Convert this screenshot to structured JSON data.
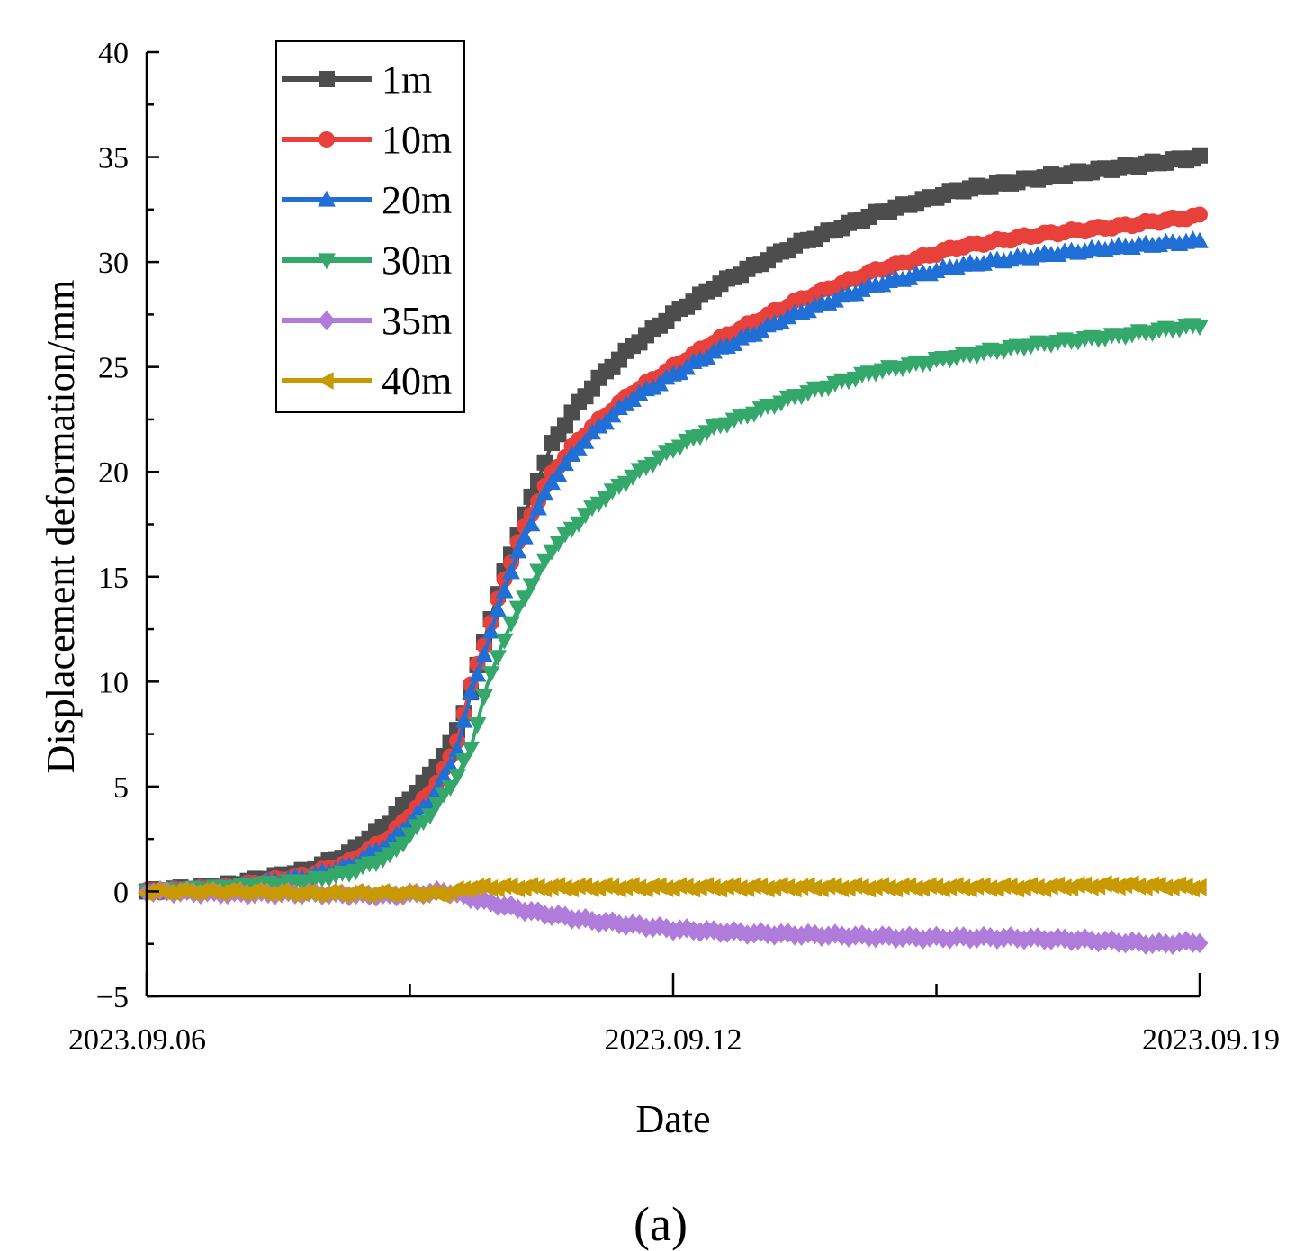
{
  "chart_data": {
    "type": "line",
    "title": "",
    "panel_label": "(a)",
    "xlabel": "Date",
    "ylabel": "Displacement deformation/mm",
    "x_unit": "days since 2023.09.06",
    "xlim": [
      0,
      13
    ],
    "ylim": [
      -5,
      40
    ],
    "x_ticks": [
      {
        "value": 0,
        "label": "2023.09.06"
      },
      {
        "value": 6.5,
        "label": "2023.09.12"
      },
      {
        "value": 13,
        "label": "2023.09.19"
      }
    ],
    "x_minor_ticks": [
      3.25,
      9.75
    ],
    "y_ticks": [
      {
        "value": -5,
        "label": "−5"
      },
      {
        "value": 0,
        "label": "0"
      },
      {
        "value": 5,
        "label": "5"
      },
      {
        "value": 10,
        "label": "10"
      },
      {
        "value": 15,
        "label": "15"
      },
      {
        "value": 20,
        "label": "20"
      },
      {
        "value": 25,
        "label": "25"
      },
      {
        "value": 30,
        "label": "30"
      },
      {
        "value": 35,
        "label": "35"
      },
      {
        "value": 40,
        "label": "40"
      }
    ],
    "y_minor_ticks": [
      -2.5,
      2.5,
      7.5,
      12.5,
      17.5,
      22.5,
      27.5,
      32.5,
      37.5
    ],
    "grid": false,
    "legend_position": "top-left",
    "series": [
      {
        "name": "1m",
        "color": "#4d4d4d",
        "marker": "square",
        "x": [
          0,
          1,
          2,
          2.5,
          3,
          3.5,
          3.8,
          4,
          4.2,
          4.4,
          4.6,
          4.8,
          5,
          5.3,
          5.6,
          6,
          6.5,
          7,
          8,
          9,
          10,
          11,
          12,
          13
        ],
        "y": [
          0,
          0.3,
          1.0,
          1.8,
          3.3,
          5.5,
          7.3,
          9.5,
          12.4,
          15.0,
          17.2,
          19.3,
          21.3,
          23.1,
          24.5,
          26.0,
          27.5,
          28.8,
          30.8,
          32.3,
          33.4,
          34.0,
          34.5,
          35.0
        ]
      },
      {
        "name": "10m",
        "color": "#e8403a",
        "marker": "circle",
        "x": [
          0,
          1,
          2,
          2.5,
          3,
          3.5,
          3.8,
          4,
          4.2,
          4.4,
          4.6,
          4.8,
          5,
          5.3,
          5.6,
          6,
          6.5,
          7,
          8,
          9,
          10,
          11,
          12,
          13
        ],
        "y": [
          0,
          0.2,
          0.8,
          1.4,
          2.6,
          4.7,
          6.7,
          9.8,
          12.2,
          14.7,
          16.8,
          18.4,
          19.9,
          21.4,
          22.5,
          23.8,
          25.0,
          26.2,
          28.1,
          29.6,
          30.7,
          31.3,
          31.7,
          32.2
        ]
      },
      {
        "name": "20m",
        "color": "#1f6fd6",
        "marker": "triangle-up",
        "x": [
          0,
          1,
          2,
          2.5,
          3,
          3.5,
          3.8,
          4,
          4.2,
          4.4,
          4.6,
          4.8,
          5,
          5.3,
          5.6,
          6,
          6.5,
          7,
          8,
          9,
          10,
          11,
          12,
          13
        ],
        "y": [
          0,
          0.2,
          0.7,
          1.2,
          2.3,
          4.3,
          6.3,
          9.4,
          11.7,
          14.2,
          16.3,
          18.0,
          19.5,
          21.0,
          22.2,
          23.5,
          24.6,
          25.7,
          27.5,
          28.9,
          29.8,
          30.3,
          30.7,
          31.0
        ]
      },
      {
        "name": "30m",
        "color": "#33a86a",
        "marker": "triangle-down",
        "x": [
          0,
          1,
          2,
          2.5,
          3,
          3.5,
          3.8,
          4,
          4.2,
          4.4,
          4.6,
          4.8,
          5,
          5.3,
          5.6,
          6,
          6.5,
          7,
          8,
          9,
          10,
          11,
          12,
          13
        ],
        "y": [
          0,
          0.2,
          0.5,
          0.9,
          1.7,
          3.7,
          5.3,
          6.8,
          9.8,
          11.9,
          13.6,
          15.0,
          16.3,
          17.5,
          18.6,
          19.8,
          21.1,
          22.1,
          23.6,
          24.8,
          25.5,
          26.1,
          26.5,
          27.0
        ]
      },
      {
        "name": "35m",
        "color": "#b07cdc",
        "marker": "diamond",
        "x": [
          0,
          1,
          2,
          3,
          3.7,
          4.2,
          4.8,
          5.5,
          6.5,
          7.5,
          8.5,
          9.5,
          10.5,
          11.5,
          12.5,
          13
        ],
        "y": [
          0,
          -0.1,
          -0.1,
          -0.2,
          0.0,
          -0.5,
          -1.0,
          -1.4,
          -1.8,
          -2.0,
          -2.1,
          -2.2,
          -2.2,
          -2.3,
          -2.5,
          -2.4
        ]
      },
      {
        "name": "40m",
        "color": "#c89a00",
        "marker": "triangle-left",
        "x": [
          0,
          1,
          2,
          3,
          3.7,
          4,
          5,
          6,
          7,
          8,
          9,
          10,
          11,
          12,
          13
        ],
        "y": [
          0,
          0,
          -0.1,
          -0.1,
          -0.1,
          0.2,
          0.2,
          0.2,
          0.2,
          0.2,
          0.2,
          0.2,
          0.2,
          0.3,
          0.2
        ]
      }
    ]
  }
}
